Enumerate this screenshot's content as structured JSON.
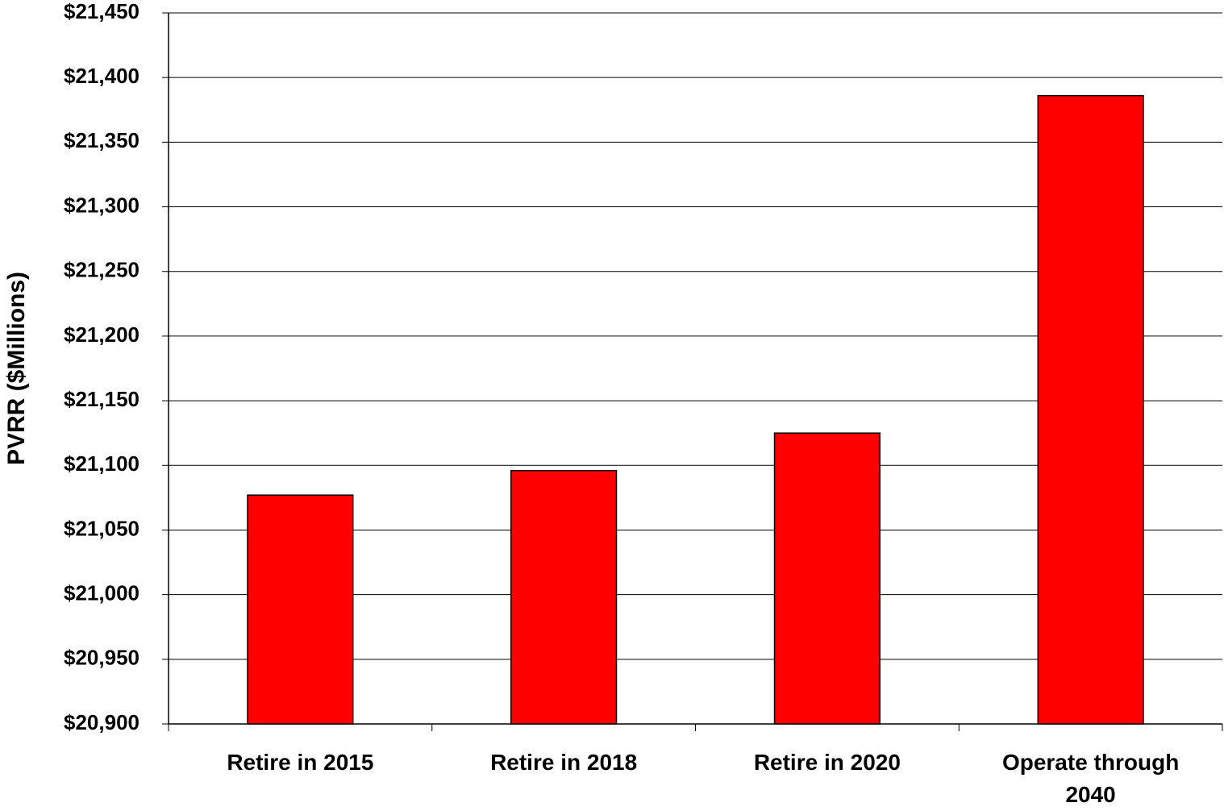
{
  "chart_data": {
    "type": "bar",
    "y_label": "PVRR ($Millions)",
    "categories": [
      "Retire in 2015",
      "Retire in 2018",
      "Retire in 2020",
      "Operate through 2040"
    ],
    "values": [
      21077,
      21096,
      21125,
      21386
    ],
    "color": "#ff0000",
    "ylim": [
      20900,
      21450
    ],
    "yticks": [
      {
        "value": 20900,
        "label": "$20,900"
      },
      {
        "value": 20950,
        "label": "$20,950"
      },
      {
        "value": 21000,
        "label": "$21,000"
      },
      {
        "value": 21050,
        "label": "$21,050"
      },
      {
        "value": 21100,
        "label": "$21,100"
      },
      {
        "value": 21150,
        "label": "$21,150"
      },
      {
        "value": 21200,
        "label": "$21,200"
      },
      {
        "value": 21250,
        "label": "$21,250"
      },
      {
        "value": 21300,
        "label": "$21,300"
      },
      {
        "value": 21350,
        "label": "$21,350"
      },
      {
        "value": 21400,
        "label": "$21,400"
      },
      {
        "value": 21450,
        "label": "$21,450"
      }
    ],
    "grid": true
  }
}
